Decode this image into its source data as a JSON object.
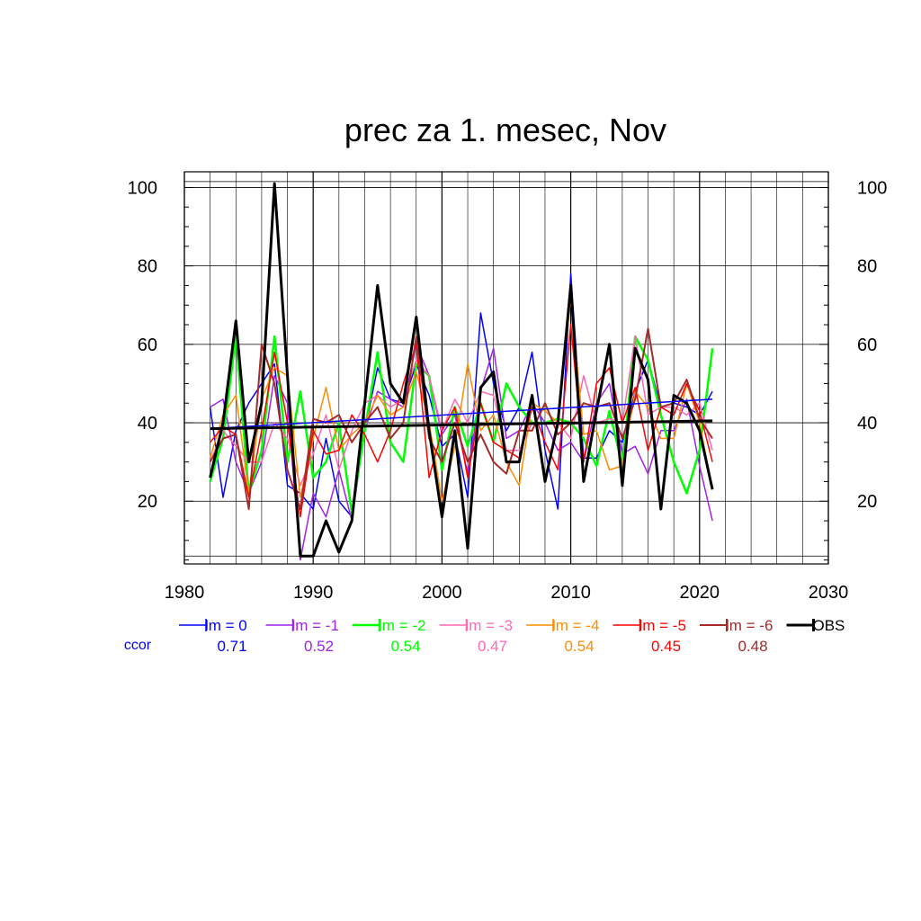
{
  "chart_data": {
    "type": "line",
    "title": "prec za 1. mesec, Nov",
    "xlim": [
      1980,
      2030
    ],
    "ylim": [
      4,
      104
    ],
    "x_ticks": [
      1980,
      1990,
      2000,
      2010,
      2020,
      2030
    ],
    "y_ticks": [
      20,
      40,
      60,
      80,
      100
    ],
    "grid": true,
    "x": [
      1982,
      1983,
      1984,
      1985,
      1986,
      1987,
      1988,
      1989,
      1990,
      1991,
      1992,
      1993,
      1994,
      1995,
      1996,
      1997,
      1998,
      1999,
      2000,
      2001,
      2002,
      2003,
      2004,
      2005,
      2006,
      2007,
      2008,
      2009,
      2010,
      2011,
      2012,
      2013,
      2014,
      2015,
      2016,
      2017,
      2018,
      2019,
      2020,
      2021
    ],
    "series": [
      {
        "name": "lm = 0",
        "color": "#0000ff",
        "width": 1.5,
        "ccor": "0.71",
        "values": [
          44,
          21,
          38,
          45,
          50,
          55,
          24,
          22,
          18,
          36,
          20,
          16,
          38,
          54,
          46,
          45,
          55,
          47,
          34,
          37,
          21,
          68,
          50,
          38,
          44,
          58,
          33,
          18,
          78,
          31,
          31,
          38,
          35,
          48,
          56,
          44,
          45,
          44,
          42,
          48
        ],
        "trend": [
          38.5,
          46.0
        ]
      },
      {
        "name": "lm = -1",
        "color": "#a020f0",
        "width": 1.5,
        "ccor": "0.52",
        "values": [
          44,
          46,
          30,
          22,
          30,
          52,
          45,
          5,
          22,
          16,
          28,
          15,
          38,
          48,
          46,
          44,
          60,
          52,
          37,
          42,
          27,
          48,
          59,
          36,
          38,
          45,
          40,
          33,
          35,
          30,
          45,
          50,
          32,
          34,
          27,
          38,
          38,
          46,
          29,
          15
        ]
      },
      {
        "name": "lm = -2",
        "color": "#00ff00",
        "width": 2.5,
        "ccor": "0.54",
        "values": [
          25,
          36,
          62,
          22,
          33,
          62,
          30,
          48,
          26,
          30,
          40,
          17,
          38,
          58,
          35,
          30,
          55,
          52,
          28,
          44,
          34,
          45,
          35,
          50,
          44,
          40,
          40,
          41,
          40,
          36,
          29,
          43,
          29,
          62,
          56,
          42,
          30,
          22,
          33,
          59
        ]
      },
      {
        "name": "lm = -3",
        "color": "#ff69b4",
        "width": 1.5,
        "ccor": "0.47",
        "values": [
          30,
          38,
          34,
          30,
          30,
          40,
          36,
          24,
          32,
          42,
          28,
          38,
          45,
          47,
          44,
          46,
          56,
          52,
          38,
          46,
          40,
          48,
          47,
          33,
          33,
          40,
          40,
          40,
          36,
          52,
          40,
          41,
          40,
          62,
          42,
          44,
          44,
          42,
          45,
          33
        ]
      },
      {
        "name": "lm = -4",
        "color": "#ff8c00",
        "width": 1.5,
        "ccor": "0.54",
        "values": [
          31,
          42,
          47,
          22,
          46,
          54,
          52,
          21,
          36,
          49,
          33,
          37,
          40,
          47,
          42,
          44,
          53,
          40,
          20,
          34,
          55,
          38,
          42,
          30,
          24,
          45,
          43,
          40,
          72,
          37,
          38,
          28,
          29,
          48,
          44,
          36,
          36,
          50,
          40,
          23
        ]
      },
      {
        "name": "lm = -5",
        "color": "#ff0000",
        "width": 1.5,
        "ccor": "0.45",
        "values": [
          35,
          39,
          37,
          21,
          38,
          58,
          40,
          16,
          38,
          32,
          33,
          42,
          37,
          30,
          38,
          50,
          60,
          26,
          38,
          44,
          26,
          45,
          35,
          33,
          31,
          44,
          35,
          28,
          65,
          30,
          50,
          54,
          40,
          49,
          33,
          44,
          42,
          50,
          43,
          30
        ]
      },
      {
        "name": "lm = -6",
        "color": "#a52a2a",
        "width": 2.0,
        "ccor": "0.48",
        "values": [
          30,
          36,
          37,
          18,
          60,
          50,
          28,
          18,
          41,
          40,
          42,
          35,
          40,
          44,
          36,
          40,
          62,
          36,
          30,
          40,
          30,
          37,
          30,
          27,
          38,
          38,
          45,
          37,
          40,
          45,
          44,
          45,
          36,
          46,
          64,
          44,
          45,
          51,
          41,
          36
        ]
      },
      {
        "name": "OBS",
        "color": "#000000",
        "width": 3.0,
        "values": [
          26,
          40,
          66,
          30,
          45,
          101,
          52,
          6,
          6,
          15,
          7,
          15,
          45,
          75,
          50,
          45,
          67,
          38,
          16,
          38,
          8,
          49,
          53,
          30,
          30,
          47,
          25,
          40,
          75,
          25,
          43,
          60,
          24,
          59,
          51,
          18,
          47,
          45,
          38,
          23
        ],
        "trend": [
          38.5,
          40.5
        ]
      }
    ],
    "ccor_label": "ccor",
    "ccor_label_color": "#0000ff"
  }
}
